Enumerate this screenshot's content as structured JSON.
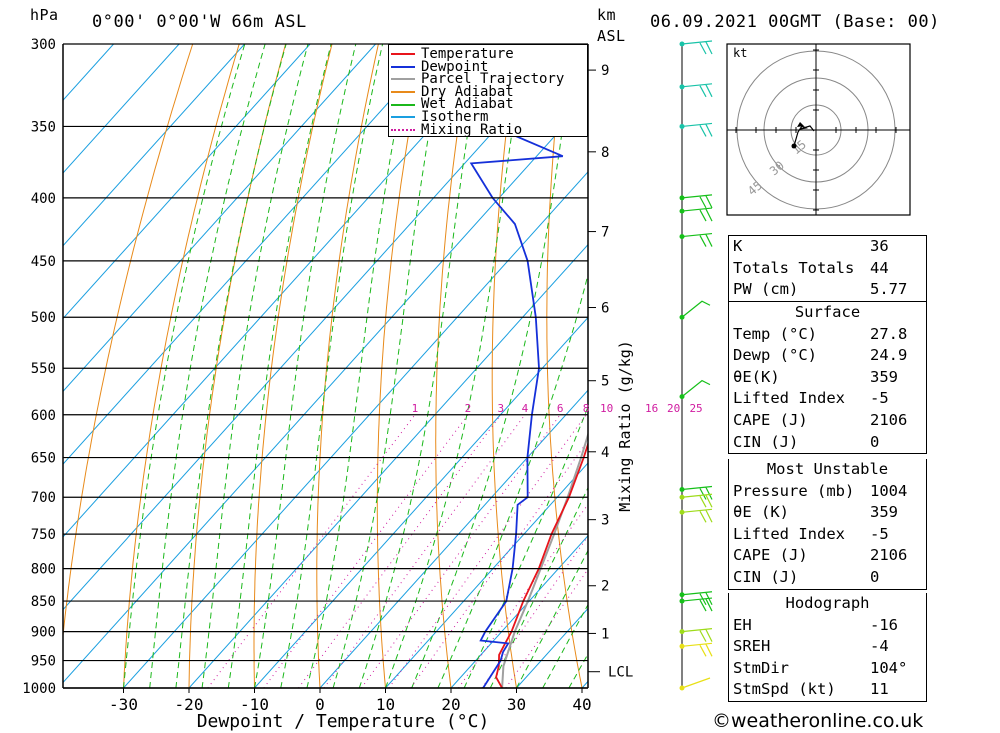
{
  "header": {
    "hpa_label": "hPa",
    "location": "0°00' 0°00'W 66m ASL",
    "km_label": "km",
    "asl_label": "ASL",
    "datetime": "06.09.2021 00GMT (Base: 00)"
  },
  "legend": [
    {
      "label": "Temperature",
      "color": "#e8141b",
      "style": "solid"
    },
    {
      "label": "Dewpoint",
      "color": "#1530d9",
      "style": "solid"
    },
    {
      "label": "Parcel Trajectory",
      "color": "#a0a0a0",
      "style": "solid"
    },
    {
      "label": "Dry Adiabat",
      "color": "#e88a1a",
      "style": "solid"
    },
    {
      "label": "Wet Adiabat",
      "color": "#1bb81b",
      "style": "solid"
    },
    {
      "label": "Isotherm",
      "color": "#1a9fe0",
      "style": "solid"
    },
    {
      "label": "Mixing Ratio",
      "color": "#d01ba0",
      "style": "dotted"
    }
  ],
  "chart_data": {
    "type": "line",
    "xlabel": "Dewpoint / Temperature (°C)",
    "ylabel_right": "Mixing Ratio (g/kg)",
    "x_ticks": [
      "-30",
      "-20",
      "-10",
      "0",
      "10",
      "20",
      "30",
      "40"
    ],
    "pressure_levels": [
      300,
      350,
      400,
      450,
      500,
      550,
      600,
      650,
      700,
      750,
      800,
      850,
      900,
      950,
      1000
    ],
    "km_ticks": [
      {
        "label": "9",
        "p": 315
      },
      {
        "label": "8",
        "p": 367
      },
      {
        "label": "7",
        "p": 426
      },
      {
        "label": "6",
        "p": 491
      },
      {
        "label": "5",
        "p": 563
      },
      {
        "label": "4",
        "p": 643
      },
      {
        "label": "3",
        "p": 730
      },
      {
        "label": "2",
        "p": 826
      },
      {
        "label": "1",
        "p": 903
      }
    ],
    "lcl": {
      "label": "LCL",
      "p": 970
    },
    "mixing_ratio_labels": [
      "1",
      "2",
      "3",
      "4",
      "6",
      "8",
      "10",
      "16",
      "20",
      "25"
    ],
    "series": [
      {
        "name": "Temperature",
        "color": "#e8141b",
        "points": [
          [
            1000,
            27.8
          ],
          [
            980,
            25.4
          ],
          [
            960,
            24.3
          ],
          [
            940,
            22.8
          ],
          [
            925,
            22.3
          ],
          [
            900,
            21.5
          ],
          [
            850,
            19.1
          ],
          [
            800,
            17.0
          ],
          [
            750,
            14.2
          ],
          [
            700,
            11.8
          ],
          [
            650,
            8.6
          ],
          [
            600,
            4.8
          ],
          [
            550,
            0.5
          ],
          [
            500,
            -5.5
          ],
          [
            450,
            -11.5
          ],
          [
            400,
            -18.5
          ],
          [
            370,
            -23.0
          ]
        ]
      },
      {
        "name": "Dewpoint",
        "color": "#1530d9",
        "points": [
          [
            1000,
            24.9
          ],
          [
            950,
            23.8
          ],
          [
            935,
            23.0
          ],
          [
            920,
            22.6
          ],
          [
            915,
            18.0
          ],
          [
            900,
            17.5
          ],
          [
            850,
            16.5
          ],
          [
            800,
            13.0
          ],
          [
            750,
            8.8
          ],
          [
            710,
            5.0
          ],
          [
            700,
            5.5
          ],
          [
            650,
            0.0
          ],
          [
            600,
            -5.2
          ],
          [
            550,
            -10.5
          ],
          [
            500,
            -18.0
          ],
          [
            450,
            -27.0
          ],
          [
            420,
            -34.0
          ],
          [
            400,
            -41.0
          ],
          [
            375,
            -49.0
          ],
          [
            370,
            -36.0
          ],
          [
            345,
            -54.5
          ],
          [
            330,
            -48.0
          ],
          [
            320,
            -47.0
          ],
          [
            318,
            -45.0
          ],
          [
            305,
            -53.0
          ],
          [
            300,
            -62.0
          ]
        ]
      },
      {
        "name": "Parcel Trajectory",
        "color": "#a0a0a0",
        "points": [
          [
            1000,
            27.8
          ],
          [
            960,
            25.0
          ],
          [
            900,
            22.0
          ],
          [
            850,
            19.8
          ],
          [
            800,
            17.3
          ],
          [
            750,
            14.6
          ],
          [
            700,
            11.6
          ],
          [
            650,
            8.2
          ],
          [
            600,
            4.3
          ],
          [
            550,
            -0.2
          ],
          [
            500,
            -5.6
          ],
          [
            450,
            -12.0
          ],
          [
            400,
            -19.8
          ],
          [
            350,
            -29.5
          ]
        ]
      }
    ]
  },
  "wind_barbs": [
    {
      "p": 300,
      "color": "#19c3a8"
    },
    {
      "p": 325,
      "color": "#19c3a8"
    },
    {
      "p": 350,
      "color": "#19c3a8"
    },
    {
      "p": 400,
      "color": "#16c01a"
    },
    {
      "p": 410,
      "color": "#16c01a"
    },
    {
      "p": 430,
      "color": "#16c01a"
    },
    {
      "p": 500,
      "color": "#16c01a"
    },
    {
      "p": 580,
      "color": "#16c01a"
    },
    {
      "p": 690,
      "color": "#16c01a"
    },
    {
      "p": 700,
      "color": "#9edb1a"
    },
    {
      "p": 720,
      "color": "#9edb1a"
    },
    {
      "p": 840,
      "color": "#16c01a"
    },
    {
      "p": 850,
      "color": "#16c01a"
    },
    {
      "p": 900,
      "color": "#9edb1a"
    },
    {
      "p": 925,
      "color": "#e8e016"
    },
    {
      "p": 1000,
      "color": "#e8e016"
    }
  ],
  "hodograph": {
    "unit_label": "kt",
    "ring_labels": [
      "15",
      "30",
      "45"
    ]
  },
  "indices": [
    {
      "label": "K",
      "value": "36"
    },
    {
      "label": "Totals Totals",
      "value": "44"
    },
    {
      "label": "PW (cm)",
      "value": "5.77"
    }
  ],
  "surface": {
    "title": "Surface",
    "rows": [
      {
        "label": "Temp (°C)",
        "value": "27.8"
      },
      {
        "label": "Dewp (°C)",
        "value": "24.9"
      },
      {
        "label": "θE(K)",
        "value": "359"
      },
      {
        "label": "Lifted Index",
        "value": "-5"
      },
      {
        "label": "CAPE (J)",
        "value": "2106"
      },
      {
        "label": "CIN (J)",
        "value": "0"
      }
    ]
  },
  "most_unstable": {
    "title": "Most Unstable",
    "rows": [
      {
        "label": "Pressure (mb)",
        "value": "1004"
      },
      {
        "label": "θE (K)",
        "value": "359"
      },
      {
        "label": "Lifted Index",
        "value": "-5"
      },
      {
        "label": "CAPE (J)",
        "value": "2106"
      },
      {
        "label": "CIN (J)",
        "value": "0"
      }
    ]
  },
  "hodograph_stats": {
    "title": "Hodograph",
    "rows": [
      {
        "label": "EH",
        "value": "-16"
      },
      {
        "label": "SREH",
        "value": "-4"
      },
      {
        "label": "StmDir",
        "value": "104°"
      },
      {
        "label": "StmSpd (kt)",
        "value": "11"
      }
    ]
  },
  "footer": "©weatheronline.co.uk"
}
